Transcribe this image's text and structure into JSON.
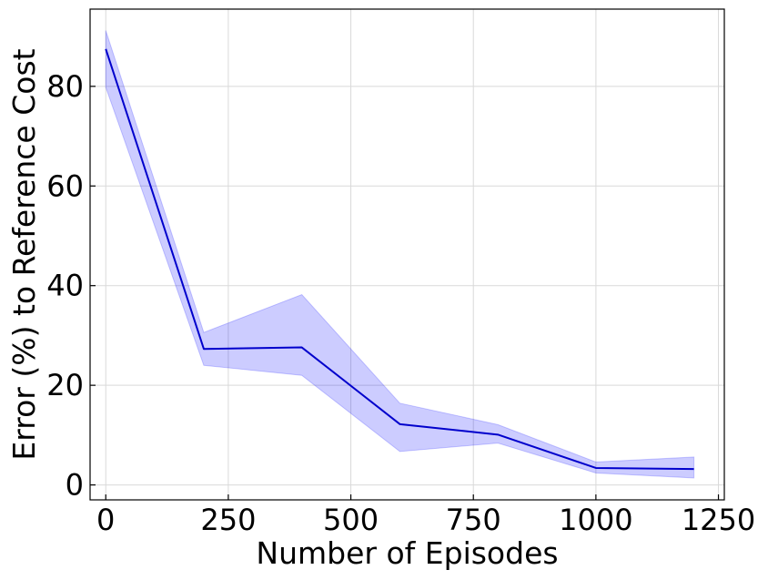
{
  "chart_data": {
    "type": "line",
    "title": "",
    "xlabel": "Number of Episodes",
    "ylabel": "Error (%) to Reference Cost",
    "xlim": [
      -32,
      1262
    ],
    "ylim": [
      -3,
      95.5
    ],
    "xticks": [
      0,
      250,
      500,
      750,
      1000,
      1250
    ],
    "yticks": [
      0,
      20,
      40,
      60,
      80
    ],
    "xtick_labels": [
      "0",
      "250",
      "500",
      "750",
      "1000",
      "1250"
    ],
    "ytick_labels": [
      "0",
      "20",
      "40",
      "60",
      "80"
    ],
    "grid": true,
    "series": [
      {
        "x": [
          0,
          200,
          400,
          600,
          800,
          1000,
          1200
        ],
        "y": [
          87.5,
          27.3,
          27.6,
          12.2,
          10.1,
          3.4,
          3.2
        ],
        "lower": [
          79.8,
          24.0,
          22.0,
          6.7,
          8.4,
          2.4,
          1.4
        ],
        "upper": [
          91.2,
          30.6,
          38.2,
          16.4,
          12.1,
          4.6,
          5.6
        ],
        "line_color": "#0000cc",
        "band_color": "#0000ff"
      }
    ]
  }
}
